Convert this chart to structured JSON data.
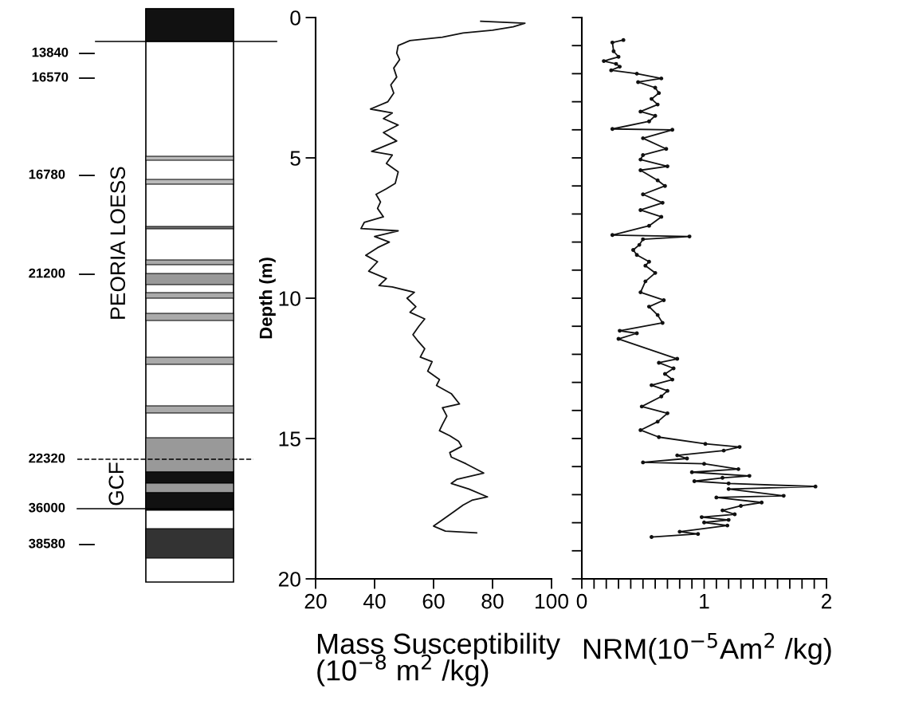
{
  "chart_data": [
    {
      "type": "other",
      "annotations": [
        "13840",
        "16570",
        "16780",
        "21200",
        "22320",
        "36000",
        "38580",
        "PEORIA LOESS",
        "GCF"
      ]
    },
    {
      "type": "line",
      "ylabel": "Depth (m)",
      "xlabel": "Mass Susceptibility\n(10$^{−8}$ m$^{2}$ /kg)",
      "xlim": [
        20,
        100
      ],
      "xticks": [
        20,
        40,
        60,
        80,
        100
      ],
      "ylim": [
        20,
        0
      ],
      "yticks": [
        0,
        5,
        10,
        15,
        20
      ],
      "grid": false,
      "legend": false,
      "marker": "none",
      "series": [
        {
          "color": "#111111",
          "x": [
            76,
            91,
            87,
            80,
            70,
            63,
            52,
            48,
            47.5,
            48.5,
            46.5,
            47.5,
            45.5,
            46.5,
            44.5,
            38.6,
            46,
            43,
            48,
            43,
            47.5,
            39,
            46,
            44,
            48,
            47,
            44,
            40.5,
            42,
            41,
            43,
            36.5,
            35.4,
            48,
            40,
            45,
            41,
            37,
            41,
            38,
            44,
            41.5,
            46,
            53.5,
            51,
            54,
            52,
            57,
            55,
            53,
            54.5,
            57,
            55.5,
            59.5,
            58,
            62,
            61,
            66,
            68.8,
            63,
            64.5,
            63,
            62,
            65.5,
            68.5,
            69.5,
            65.5,
            66,
            71,
            77,
            68,
            66,
            72,
            78.3,
            73,
            70,
            67,
            63,
            60,
            64,
            74.6
          ],
          "values": [
            0.13,
            0.2,
            0.33,
            0.45,
            0.55,
            0.7,
            0.82,
            1.0,
            1.27,
            1.5,
            1.8,
            2.12,
            2.4,
            2.69,
            3.0,
            3.26,
            3.4,
            3.6,
            3.83,
            4.1,
            4.4,
            4.77,
            4.9,
            5.2,
            5.5,
            5.91,
            6.1,
            6.3,
            6.57,
            6.8,
            7.1,
            7.3,
            7.52,
            7.6,
            7.8,
            8.0,
            8.2,
            8.47,
            8.7,
            9.04,
            9.3,
            9.55,
            9.6,
            9.79,
            10.0,
            10.3,
            10.5,
            10.74,
            11.0,
            11.3,
            11.5,
            11.8,
            12.1,
            12.26,
            12.6,
            12.9,
            13.11,
            13.4,
            13.77,
            13.9,
            14.2,
            14.5,
            14.72,
            14.9,
            15.1,
            15.28,
            15.5,
            15.66,
            15.9,
            16.23,
            16.45,
            16.6,
            16.8,
            17.08,
            17.2,
            17.37,
            17.6,
            17.9,
            18.12,
            18.3,
            18.36
          ]
        }
      ]
    },
    {
      "type": "line",
      "xlabel": "NRM(10$^{−5}$Am$^{2}$ /kg)",
      "tick_labels": "x",
      "xlim": [
        0,
        2
      ],
      "xticks": [
        0,
        {
          "value": 0.1,
          "label": null
        },
        {
          "value": 0.2,
          "label": null
        },
        {
          "value": 0.3,
          "label": null
        },
        {
          "value": 0.4,
          "label": null
        },
        {
          "value": 0.5,
          "label": null
        },
        {
          "value": 0.6,
          "label": null
        },
        {
          "value": 0.7,
          "label": null
        },
        {
          "value": 0.8,
          "label": null
        },
        {
          "value": 0.9,
          "label": null
        },
        1,
        {
          "value": 1.1,
          "label": null
        },
        {
          "value": 1.2,
          "label": null
        },
        {
          "value": 1.3,
          "label": null
        },
        {
          "value": 1.4,
          "label": null
        },
        {
          "value": 1.5,
          "label": null
        },
        {
          "value": 1.6,
          "label": null
        },
        {
          "value": 1.7,
          "label": null
        },
        {
          "value": 1.8,
          "label": null
        },
        {
          "value": 1.9,
          "label": null
        },
        2
      ],
      "ylim": [
        20,
        0
      ],
      "yticks": [
        {
          "value": 0,
          "label": null
        },
        {
          "value": 1,
          "label": null
        },
        {
          "value": 2,
          "label": null
        },
        {
          "value": 3,
          "label": null
        },
        {
          "value": 4,
          "label": null
        },
        {
          "value": 5,
          "label": null
        },
        {
          "value": 6,
          "label": null
        },
        {
          "value": 7,
          "label": null
        },
        {
          "value": 8,
          "label": null
        },
        {
          "value": 9,
          "label": null
        },
        {
          "value": 10,
          "label": null
        },
        {
          "value": 11,
          "label": null
        },
        {
          "value": 12,
          "label": null
        },
        {
          "value": 13,
          "label": null
        },
        {
          "value": 14,
          "label": null
        },
        {
          "value": 15,
          "label": null
        },
        {
          "value": 16,
          "label": null
        },
        {
          "value": 17,
          "label": null
        },
        {
          "value": 18,
          "label": null
        },
        {
          "value": 19,
          "label": null
        },
        {
          "value": 20,
          "label": null
        }
      ],
      "grid": false,
      "legend": false,
      "marker": "circle",
      "series": [
        {
          "color": "#111111",
          "x": [
            0.34,
            0.25,
            0.26,
            0.3,
            0.18,
            0.28,
            0.31,
            0.24,
            0.45,
            0.65,
            0.46,
            0.6,
            0.63,
            0.57,
            0.62,
            0.48,
            0.6,
            0.55,
            0.25,
            0.74,
            0.5,
            0.69,
            0.5,
            0.48,
            0.7,
            0.48,
            0.62,
            0.68,
            0.5,
            0.66,
            0.48,
            0.65,
            0.55,
            0.25,
            0.88,
            0.5,
            0.47,
            0.42,
            0.45,
            0.55,
            0.52,
            0.6,
            0.52,
            0.48,
            0.67,
            0.55,
            0.62,
            0.66,
            0.31,
            0.45,
            0.3,
            0.78,
            0.63,
            0.75,
            0.68,
            0.74,
            0.57,
            0.7,
            0.65,
            0.49,
            0.7,
            0.62,
            0.48,
            0.63,
            1.01,
            1.29,
            1.16,
            0.78,
            0.86,
            0.5,
            1.0,
            1.28,
            0.9,
            1.37,
            1.15,
            0.92,
            1.2,
            1.91,
            1.2,
            1.65,
            1.1,
            1.47,
            1.3,
            1.15,
            1.25,
            0.98,
            1.2,
            1.0,
            1.19,
            0.8,
            0.95,
            0.57
          ],
          "values": [
            0.8,
            0.89,
            1.2,
            1.4,
            1.55,
            1.65,
            1.75,
            1.88,
            2.0,
            2.17,
            2.3,
            2.5,
            2.69,
            2.9,
            3.1,
            3.35,
            3.5,
            3.7,
            3.97,
            4.0,
            4.3,
            4.68,
            4.9,
            5.06,
            5.3,
            5.44,
            5.8,
            6.0,
            6.3,
            6.6,
            6.86,
            7.1,
            7.42,
            7.75,
            7.8,
            7.9,
            8.1,
            8.28,
            8.46,
            8.7,
            8.84,
            9.1,
            9.4,
            9.79,
            10.07,
            10.3,
            10.6,
            10.88,
            11.16,
            11.25,
            11.45,
            12.16,
            12.3,
            12.5,
            12.7,
            12.9,
            13.1,
            13.3,
            13.5,
            13.86,
            14.1,
            14.4,
            14.7,
            14.95,
            15.19,
            15.3,
            15.43,
            15.6,
            15.71,
            15.85,
            15.9,
            16.09,
            16.2,
            16.33,
            16.4,
            16.52,
            16.6,
            16.71,
            16.8,
            17.04,
            17.1,
            17.28,
            17.4,
            17.56,
            17.7,
            17.8,
            17.9,
            17.99,
            18.1,
            18.32,
            18.4,
            18.51
          ]
        }
      ]
    }
  ]
}
